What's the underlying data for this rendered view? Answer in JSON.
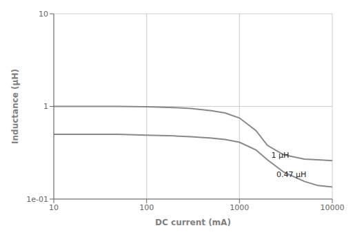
{
  "chart_data": {
    "type": "line",
    "log": true,
    "grid": true,
    "xlabel": "DC current (mA)",
    "ylabel": "Inductance (μH)",
    "xlim": [
      10,
      10000
    ],
    "ylim": [
      0.1,
      10
    ],
    "xticks": [
      10,
      100,
      1000,
      10000
    ],
    "yticks": [
      {
        "value": 0.1,
        "label": "1e-01"
      },
      1,
      10
    ],
    "x": [
      10,
      20,
      50,
      100,
      200,
      300,
      500,
      700,
      1000,
      1500,
      2000,
      3000,
      5000,
      7000,
      10000
    ],
    "series": [
      {
        "color": "#888888",
        "values": [
          1.0,
          1.0,
          1.0,
          0.99,
          0.97,
          0.95,
          0.9,
          0.85,
          0.75,
          0.55,
          0.38,
          0.3,
          0.27,
          0.265,
          0.26
        ]
      },
      {
        "color": "#888888",
        "values": [
          0.5,
          0.5,
          0.5,
          0.49,
          0.48,
          0.47,
          0.455,
          0.44,
          0.41,
          0.34,
          0.265,
          0.195,
          0.155,
          0.14,
          0.135
        ]
      }
    ],
    "annotations": [
      {
        "text": "1 μH",
        "x": 2200,
        "y": 0.295
      },
      {
        "text": "0.47 μH",
        "x": 2500,
        "y": 0.185
      }
    ]
  }
}
